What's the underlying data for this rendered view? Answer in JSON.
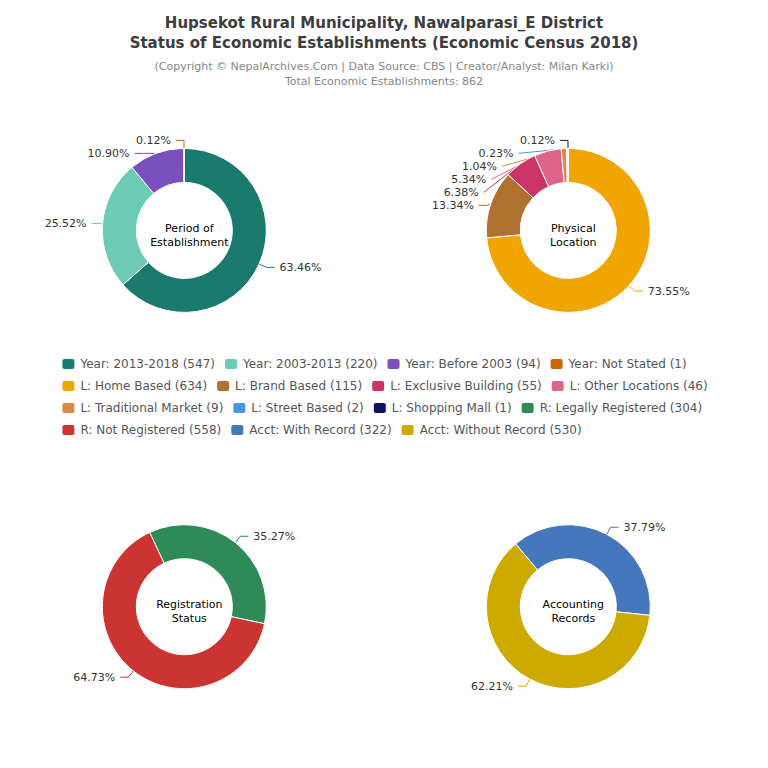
{
  "title": "Hupsekot Rural Municipality, Nawalparasi_E District\nStatus of Economic Establishments (Economic Census 2018)",
  "subtitle": "(Copyright © NepalArchives.Com | Data Source: CBS | Creator/Analyst: Milan Karki)\nTotal Economic Establishments: 862",
  "legend": "center",
  "chart_data": [
    {
      "type": "pie",
      "title": "Period of\nEstablishment",
      "categories": [
        "Year: 2013-2018 (547)",
        "Year: 2003-2013 (220)",
        "Year: Before 2003 (94)",
        "Year: Not Stated (1)"
      ],
      "values": [
        63.46,
        25.52,
        10.9,
        0.12
      ],
      "value_labels": [
        "63.46%",
        "25.52%",
        "10.90%",
        "0.12%"
      ],
      "colors": [
        "#1a7a6e",
        "#6dcbb5",
        "#7b4fbe",
        "#cc6600"
      ],
      "data_labels": true
    },
    {
      "type": "pie",
      "title": "Physical\nLocation",
      "categories": [
        "L: Home Based (634)",
        "L: Brand Based (115)",
        "L: Exclusive Building (55)",
        "L: Other Locations (46)",
        "L: Traditional Market (9)",
        "L: Street Based (2)",
        "L: Shopping Mall (1)"
      ],
      "values": [
        73.55,
        13.34,
        6.38,
        5.34,
        1.04,
        0.23,
        0.12
      ],
      "value_labels": [
        "73.55%",
        "13.34%",
        "6.38%",
        "5.34%",
        "1.04%",
        "0.23%",
        "0.12%"
      ],
      "colors": [
        "#f0a500",
        "#b07030",
        "#cc3366",
        "#dd6688",
        "#dd8844",
        "#4499dd",
        "#111166"
      ],
      "data_labels": true
    },
    {
      "type": "pie",
      "title": "Registration\nStatus",
      "categories": [
        "R: Legally Registered (304)",
        "R: Not Registered (558)"
      ],
      "values": [
        35.27,
        64.73
      ],
      "value_labels": [
        "35.27%",
        "64.73%"
      ],
      "colors": [
        "#2e8b57",
        "#cc3333"
      ],
      "data_labels": true
    },
    {
      "type": "pie",
      "title": "Accounting\nRecords",
      "categories": [
        "Acct: With Record (322)",
        "Acct: Without Record (530)"
      ],
      "values": [
        37.79,
        62.21
      ],
      "value_labels": [
        "37.79%",
        "62.21%"
      ],
      "colors": [
        "#4477bb",
        "#ccaa00"
      ],
      "data_labels": true
    }
  ]
}
